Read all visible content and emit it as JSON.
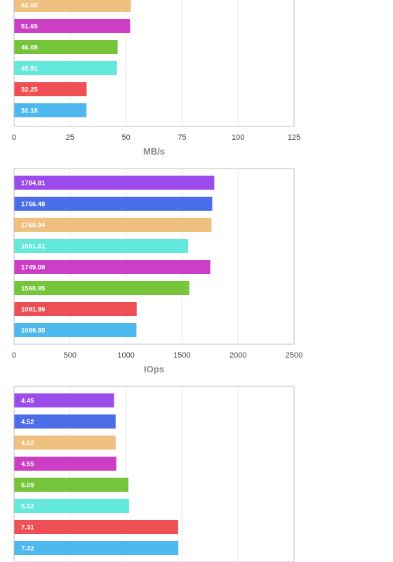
{
  "chart_data": [
    {
      "type": "bar",
      "orientation": "horizontal",
      "xlabel": "MB/s",
      "xlim": [
        0,
        125
      ],
      "xticks": [
        "0",
        "25",
        "50",
        "75",
        "100",
        "125"
      ],
      "bars": [
        {
          "value": 52.0,
          "label": "52.00",
          "color": "#F0C080"
        },
        {
          "value": 51.65,
          "label": "51.65",
          "color": "#CC3FC4"
        },
        {
          "value": 46.08,
          "label": "46.08",
          "color": "#76C43A"
        },
        {
          "value": 45.81,
          "label": "45.81",
          "color": "#63E8DC"
        },
        {
          "value": 32.25,
          "label": "32.25",
          "color": "#EE4F55"
        },
        {
          "value": 32.18,
          "label": "32.18",
          "color": "#4DB8EE"
        }
      ]
    },
    {
      "type": "bar",
      "orientation": "horizontal",
      "xlabel": "IOps",
      "xlim": [
        0,
        2500
      ],
      "xticks": [
        "0",
        "500",
        "1000",
        "1500",
        "2000",
        "2500"
      ],
      "bars": [
        {
          "value": 1784.81,
          "label": "1784.81",
          "color": "#9B4BEA"
        },
        {
          "value": 1766.48,
          "label": "1766.48",
          "color": "#4C6DE8"
        },
        {
          "value": 1760.04,
          "label": "1760.04",
          "color": "#F0C080"
        },
        {
          "value": 1551.61,
          "label": "1551.61",
          "color": "#63E8DC"
        },
        {
          "value": 1749.09,
          "label": "1749.09",
          "color": "#CC3FC4"
        },
        {
          "value": 1560.95,
          "label": "1560.95",
          "color": "#76C43A"
        },
        {
          "value": 1091.99,
          "label": "1091.99",
          "color": "#EE4F55"
        },
        {
          "value": 1089.85,
          "label": "1089.85",
          "color": "#4DB8EE"
        }
      ]
    },
    {
      "type": "bar",
      "orientation": "horizontal",
      "xlabel": "",
      "xlim": [
        0,
        12.5
      ],
      "xticks": [],
      "bars": [
        {
          "value": 4.45,
          "label": "4.45",
          "color": "#9B4BEA"
        },
        {
          "value": 4.52,
          "label": "4.52",
          "color": "#4C6DE8"
        },
        {
          "value": 4.52,
          "label": "4.52",
          "color": "#F0C080"
        },
        {
          "value": 4.55,
          "label": "4.55",
          "color": "#CC3FC4"
        },
        {
          "value": 5.09,
          "label": "5.09",
          "color": "#76C43A"
        },
        {
          "value": 5.12,
          "label": "5.12",
          "color": "#63E8DC"
        },
        {
          "value": 7.31,
          "label": "7.31",
          "color": "#EE4F55"
        },
        {
          "value": 7.32,
          "label": "7.32",
          "color": "#4DB8EE"
        }
      ]
    }
  ]
}
